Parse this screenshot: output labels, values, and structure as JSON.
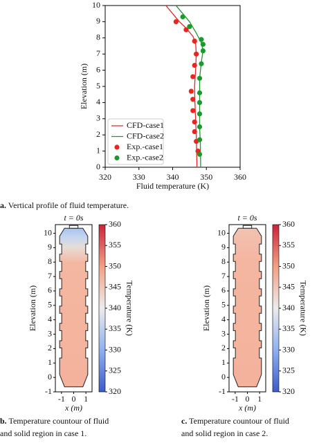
{
  "chart_data": [
    {
      "type": "line",
      "xlabel": "Fluid temperature (K)",
      "ylabel": "Elevation (m)",
      "xlim": [
        320,
        360
      ],
      "xticks": [
        320,
        330,
        340,
        350,
        360
      ],
      "ylim": [
        0,
        10
      ],
      "yticks": [
        0,
        1,
        2,
        3,
        4,
        5,
        6,
        7,
        8,
        9,
        10
      ],
      "legend": "lower left",
      "series": [
        {
          "name": "CFD-case1",
          "color": "#e8261f",
          "kind": "line",
          "x": [
            338,
            340,
            342,
            344,
            346,
            346.8,
            347,
            346.8,
            346.5,
            346.6,
            346.8,
            347,
            347.2
          ],
          "y": [
            10,
            9.5,
            9,
            8.6,
            8.1,
            7.7,
            7,
            6,
            5,
            4,
            3,
            2,
            0
          ]
        },
        {
          "name": "CFD-case2",
          "color": "#1a9a2b",
          "kind": "line",
          "x": [
            341,
            343,
            345,
            347,
            348.5,
            349,
            348.5,
            348,
            348,
            348,
            348,
            348.2,
            348.3
          ],
          "y": [
            10,
            9.5,
            9,
            8.3,
            7.7,
            7.2,
            6.5,
            5.5,
            4.5,
            3.5,
            2.5,
            1.5,
            0
          ]
        },
        {
          "name": "Exp.-case1",
          "color": "#e8261f",
          "kind": "scatter",
          "x": [
            341,
            344,
            346.5,
            347,
            346.5,
            346,
            345.5,
            346,
            346,
            346.5,
            346.5,
            347,
            347.5
          ],
          "y": [
            9,
            8.5,
            7.8,
            7,
            6.3,
            5.6,
            4.7,
            4.2,
            3.5,
            2.8,
            2.2,
            1.6,
            1
          ]
        },
        {
          "name": "Exp.-case2",
          "color": "#1a9a2b",
          "kind": "scatter",
          "x": [
            343,
            345,
            348.5,
            349,
            349,
            348.5,
            348,
            348,
            348,
            348,
            348,
            348,
            348
          ],
          "y": [
            9.3,
            8.7,
            7.9,
            7.6,
            7.2,
            6.4,
            5.5,
            4.6,
            4,
            3.3,
            2.5,
            1.7,
            0.8
          ]
        }
      ]
    },
    {
      "type": "contour",
      "title": "t = 0s",
      "xlabel": "x (m)",
      "ylabel": "Elevation (m)",
      "xlim": [
        -1.5,
        1.5
      ],
      "xticks": [
        -1,
        0,
        1
      ],
      "ylim": [
        -1,
        10.6
      ],
      "yticks": [
        -1,
        0,
        1,
        2,
        3,
        4,
        5,
        6,
        7,
        8,
        9,
        10
      ],
      "colorbar_label": "Temperature (K)",
      "clim": [
        320,
        360
      ],
      "cticks": [
        320,
        325,
        330,
        335,
        340,
        345,
        350,
        355,
        360
      ]
    },
    {
      "type": "contour",
      "title": "t = 0s",
      "xlabel": "x (m)",
      "ylabel": "Elevation (m)",
      "xlim": [
        -1.5,
        1.5
      ],
      "xticks": [
        -1,
        0,
        1
      ],
      "ylim": [
        -1,
        10.6
      ],
      "yticks": [
        -1,
        0,
        1,
        2,
        3,
        4,
        5,
        6,
        7,
        8,
        9,
        10
      ],
      "colorbar_label": "Temperature (K)",
      "clim": [
        320,
        360
      ],
      "cticks": [
        320,
        325,
        330,
        335,
        340,
        345,
        350,
        355,
        360
      ]
    }
  ],
  "captions": [
    {
      "label": "a.",
      "lines": [
        "Vertical profile of fluid temperature."
      ]
    },
    {
      "label": "b.",
      "lines": [
        "Temperature countour of fluid",
        "and solid region in case 1."
      ]
    },
    {
      "label": "c.",
      "lines": [
        "Temperature countour of fluid",
        "and solid region in case 2."
      ]
    }
  ]
}
